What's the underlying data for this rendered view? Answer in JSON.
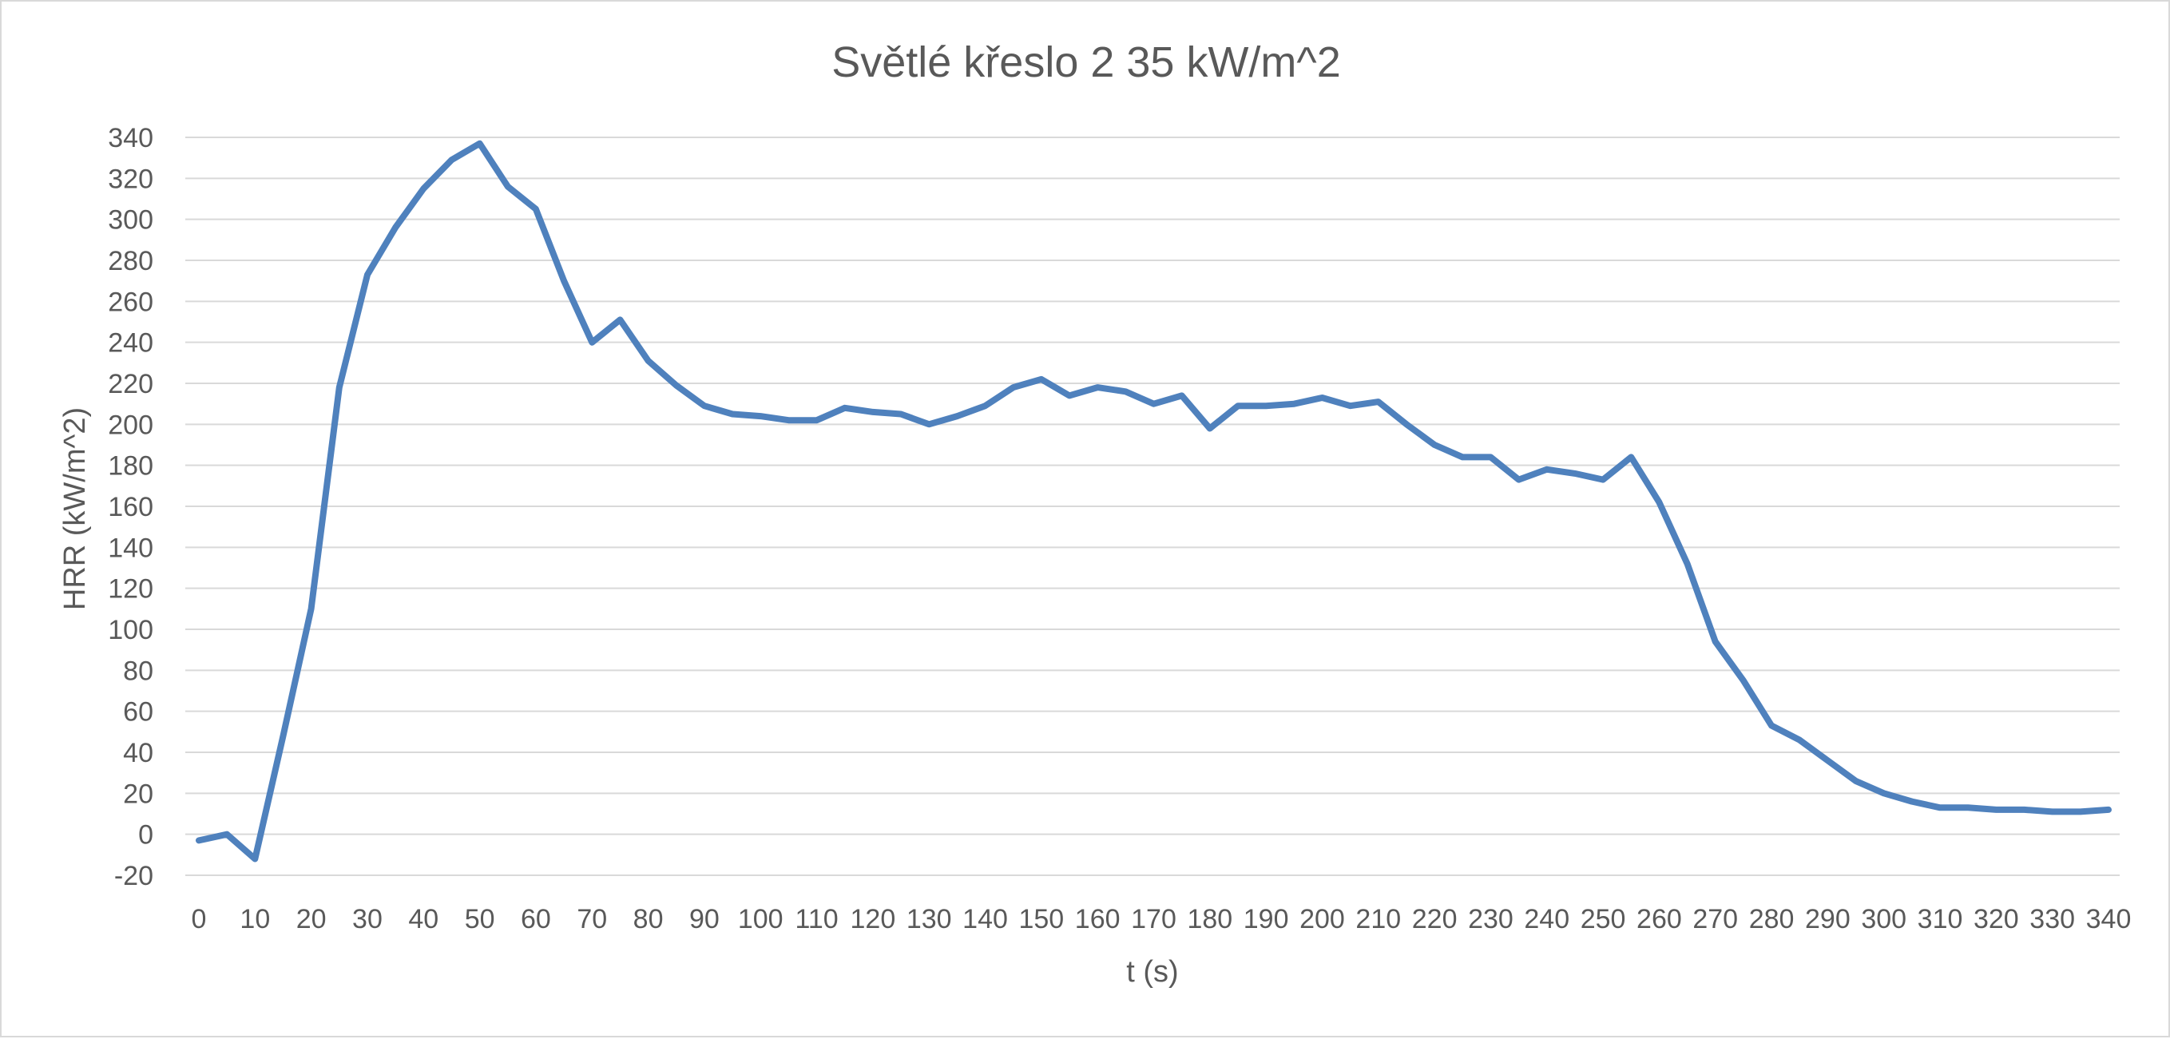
{
  "chart_data": {
    "type": "line",
    "title": "Světlé křeslo 2 35 kW/m^2",
    "xlabel": "t (s)",
    "ylabel": "HRR (kW/m^2)",
    "xlim": [
      0,
      340
    ],
    "ylim": [
      -20,
      340
    ],
    "x_ticks": [
      0,
      10,
      20,
      30,
      40,
      50,
      60,
      70,
      80,
      90,
      100,
      110,
      120,
      130,
      140,
      150,
      160,
      170,
      180,
      190,
      200,
      210,
      220,
      230,
      240,
      250,
      260,
      270,
      280,
      290,
      300,
      310,
      320,
      330,
      340
    ],
    "y_ticks": [
      -20,
      0,
      20,
      40,
      60,
      80,
      100,
      120,
      140,
      160,
      180,
      200,
      220,
      240,
      260,
      280,
      300,
      320,
      340
    ],
    "grid": true,
    "legend": "none",
    "line_color": "#4F81BD",
    "series": [
      {
        "name": "HRR",
        "x": [
          0,
          5,
          10,
          15,
          20,
          25,
          30,
          35,
          40,
          45,
          50,
          55,
          60,
          65,
          70,
          75,
          80,
          85,
          90,
          95,
          100,
          105,
          110,
          115,
          120,
          125,
          130,
          135,
          140,
          145,
          150,
          155,
          160,
          165,
          170,
          175,
          180,
          185,
          190,
          195,
          200,
          205,
          210,
          215,
          220,
          225,
          230,
          235,
          240,
          245,
          250,
          255,
          260,
          265,
          270,
          275,
          280,
          285,
          290,
          295,
          300,
          305,
          310,
          315,
          320,
          325,
          330,
          335,
          340
        ],
        "values": [
          -3,
          0,
          -12,
          48,
          110,
          218,
          273,
          296,
          315,
          329,
          337,
          316,
          305,
          270,
          240,
          251,
          231,
          219,
          209,
          205,
          204,
          202,
          202,
          208,
          206,
          205,
          200,
          204,
          209,
          218,
          222,
          214,
          218,
          216,
          210,
          214,
          198,
          209,
          209,
          210,
          213,
          209,
          211,
          200,
          190,
          184,
          184,
          173,
          178,
          176,
          173,
          184,
          162,
          132,
          94,
          75,
          53,
          46,
          36,
          26,
          20,
          16,
          13,
          13,
          12,
          12,
          11,
          11,
          12
        ]
      }
    ]
  }
}
